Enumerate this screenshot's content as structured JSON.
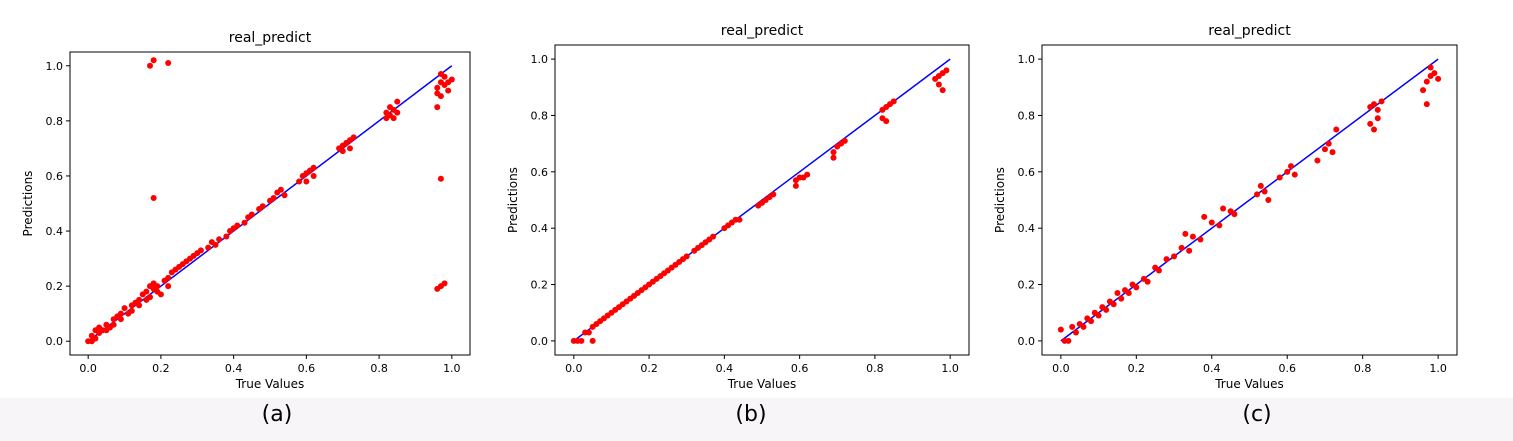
{
  "figure": {
    "background": "#ffffff",
    "caption_strip_color": "#f7f5f7",
    "point_color": "#ff0000",
    "line_color": "#0000ff"
  },
  "chart_data": [
    {
      "type": "scatter",
      "caption": "(a)",
      "title": "real_predict",
      "xlabel": "True Values",
      "ylabel": "Predictions",
      "xlim": [
        -0.05,
        1.05
      ],
      "ylim": [
        -0.05,
        1.05
      ],
      "xticks": [
        0.0,
        0.2,
        0.4,
        0.6,
        0.8,
        1.0
      ],
      "yticks": [
        0.0,
        0.2,
        0.4,
        0.6,
        0.8,
        1.0
      ],
      "xtick_labels": [
        "0.0",
        "0.2",
        "0.4",
        "0.6",
        "0.8",
        "1.0"
      ],
      "ytick_labels": [
        "0.0",
        "0.2",
        "0.4",
        "0.6",
        "0.8",
        "1.0"
      ],
      "reference_line": {
        "x": [
          0.0,
          1.0
        ],
        "y": [
          0.0,
          1.0
        ]
      },
      "points": [
        [
          0.0,
          0.0
        ],
        [
          0.01,
          0.02
        ],
        [
          0.01,
          0.0
        ],
        [
          0.02,
          0.04
        ],
        [
          0.02,
          0.01
        ],
        [
          0.03,
          0.03
        ],
        [
          0.03,
          0.05
        ],
        [
          0.04,
          0.04
        ],
        [
          0.05,
          0.06
        ],
        [
          0.05,
          0.04
        ],
        [
          0.06,
          0.05
        ],
        [
          0.07,
          0.08
        ],
        [
          0.07,
          0.06
        ],
        [
          0.08,
          0.09
        ],
        [
          0.09,
          0.1
        ],
        [
          0.09,
          0.08
        ],
        [
          0.1,
          0.12
        ],
        [
          0.11,
          0.1
        ],
        [
          0.12,
          0.13
        ],
        [
          0.12,
          0.11
        ],
        [
          0.13,
          0.14
        ],
        [
          0.14,
          0.13
        ],
        [
          0.14,
          0.15
        ],
        [
          0.15,
          0.17
        ],
        [
          0.16,
          0.15
        ],
        [
          0.16,
          0.18
        ],
        [
          0.17,
          0.2
        ],
        [
          0.17,
          0.16
        ],
        [
          0.18,
          0.21
        ],
        [
          0.18,
          0.19
        ],
        [
          0.19,
          0.2
        ],
        [
          0.19,
          0.18
        ],
        [
          0.2,
          0.17
        ],
        [
          0.21,
          0.22
        ],
        [
          0.22,
          0.23
        ],
        [
          0.22,
          0.2
        ],
        [
          0.23,
          0.25
        ],
        [
          0.24,
          0.26
        ],
        [
          0.25,
          0.27
        ],
        [
          0.26,
          0.28
        ],
        [
          0.27,
          0.29
        ],
        [
          0.28,
          0.3
        ],
        [
          0.29,
          0.31
        ],
        [
          0.3,
          0.32
        ],
        [
          0.31,
          0.33
        ],
        [
          0.33,
          0.34
        ],
        [
          0.34,
          0.36
        ],
        [
          0.35,
          0.35
        ],
        [
          0.36,
          0.37
        ],
        [
          0.38,
          0.38
        ],
        [
          0.39,
          0.4
        ],
        [
          0.4,
          0.41
        ],
        [
          0.41,
          0.42
        ],
        [
          0.43,
          0.43
        ],
        [
          0.44,
          0.45
        ],
        [
          0.45,
          0.46
        ],
        [
          0.47,
          0.48
        ],
        [
          0.48,
          0.49
        ],
        [
          0.5,
          0.51
        ],
        [
          0.51,
          0.52
        ],
        [
          0.52,
          0.54
        ],
        [
          0.53,
          0.55
        ],
        [
          0.54,
          0.53
        ],
        [
          0.58,
          0.58
        ],
        [
          0.59,
          0.6
        ],
        [
          0.6,
          0.61
        ],
        [
          0.6,
          0.58
        ],
        [
          0.61,
          0.62
        ],
        [
          0.62,
          0.63
        ],
        [
          0.62,
          0.6
        ],
        [
          0.69,
          0.7
        ],
        [
          0.7,
          0.71
        ],
        [
          0.7,
          0.69
        ],
        [
          0.71,
          0.72
        ],
        [
          0.72,
          0.73
        ],
        [
          0.72,
          0.7
        ],
        [
          0.73,
          0.74
        ],
        [
          0.82,
          0.83
        ],
        [
          0.82,
          0.81
        ],
        [
          0.83,
          0.85
        ],
        [
          0.83,
          0.82
        ],
        [
          0.84,
          0.84
        ],
        [
          0.84,
          0.81
        ],
        [
          0.85,
          0.87
        ],
        [
          0.85,
          0.83
        ],
        [
          0.96,
          0.92
        ],
        [
          0.96,
          0.9
        ],
        [
          0.97,
          0.94
        ],
        [
          0.97,
          0.89
        ],
        [
          0.98,
          0.93
        ],
        [
          0.98,
          0.96
        ],
        [
          0.99,
          0.91
        ],
        [
          0.99,
          0.94
        ],
        [
          1.0,
          0.95
        ],
        [
          0.96,
          0.85
        ],
        [
          0.97,
          0.97
        ],
        [
          0.17,
          1.0
        ],
        [
          0.18,
          1.02
        ],
        [
          0.22,
          1.01
        ],
        [
          0.18,
          0.52
        ],
        [
          0.97,
          0.59
        ],
        [
          0.97,
          0.2
        ],
        [
          0.98,
          0.21
        ],
        [
          0.96,
          0.19
        ]
      ]
    },
    {
      "type": "scatter",
      "caption": "(b)",
      "title": "real_predict",
      "xlabel": "True Values",
      "ylabel": "Predictions",
      "xlim": [
        -0.05,
        1.05
      ],
      "ylim": [
        -0.05,
        1.05
      ],
      "xticks": [
        0.0,
        0.2,
        0.4,
        0.6,
        0.8,
        1.0
      ],
      "yticks": [
        0.0,
        0.2,
        0.4,
        0.6,
        0.8,
        1.0
      ],
      "xtick_labels": [
        "0.0",
        "0.2",
        "0.4",
        "0.6",
        "0.8",
        "1.0"
      ],
      "ytick_labels": [
        "0.0",
        "0.2",
        "0.4",
        "0.6",
        "0.8",
        "1.0"
      ],
      "reference_line": {
        "x": [
          0.0,
          1.0
        ],
        "y": [
          0.0,
          1.0
        ]
      },
      "points": [
        [
          0.0,
          0.0
        ],
        [
          0.01,
          0.0
        ],
        [
          0.02,
          0.0
        ],
        [
          0.03,
          0.03
        ],
        [
          0.04,
          0.03
        ],
        [
          0.05,
          0.05
        ],
        [
          0.05,
          0.0
        ],
        [
          0.06,
          0.06
        ],
        [
          0.07,
          0.07
        ],
        [
          0.08,
          0.08
        ],
        [
          0.09,
          0.09
        ],
        [
          0.1,
          0.1
        ],
        [
          0.11,
          0.11
        ],
        [
          0.12,
          0.12
        ],
        [
          0.13,
          0.13
        ],
        [
          0.14,
          0.14
        ],
        [
          0.15,
          0.15
        ],
        [
          0.16,
          0.16
        ],
        [
          0.17,
          0.17
        ],
        [
          0.18,
          0.18
        ],
        [
          0.19,
          0.19
        ],
        [
          0.2,
          0.2
        ],
        [
          0.21,
          0.21
        ],
        [
          0.22,
          0.22
        ],
        [
          0.23,
          0.23
        ],
        [
          0.24,
          0.24
        ],
        [
          0.25,
          0.25
        ],
        [
          0.26,
          0.26
        ],
        [
          0.27,
          0.27
        ],
        [
          0.28,
          0.28
        ],
        [
          0.29,
          0.29
        ],
        [
          0.3,
          0.3
        ],
        [
          0.32,
          0.32
        ],
        [
          0.33,
          0.33
        ],
        [
          0.34,
          0.34
        ],
        [
          0.35,
          0.35
        ],
        [
          0.36,
          0.36
        ],
        [
          0.37,
          0.37
        ],
        [
          0.4,
          0.4
        ],
        [
          0.41,
          0.41
        ],
        [
          0.42,
          0.42
        ],
        [
          0.43,
          0.43
        ],
        [
          0.44,
          0.43
        ],
        [
          0.49,
          0.48
        ],
        [
          0.5,
          0.49
        ],
        [
          0.51,
          0.5
        ],
        [
          0.52,
          0.51
        ],
        [
          0.53,
          0.52
        ],
        [
          0.59,
          0.57
        ],
        [
          0.6,
          0.58
        ],
        [
          0.61,
          0.58
        ],
        [
          0.62,
          0.59
        ],
        [
          0.59,
          0.55
        ],
        [
          0.69,
          0.67
        ],
        [
          0.7,
          0.69
        ],
        [
          0.71,
          0.7
        ],
        [
          0.72,
          0.71
        ],
        [
          0.69,
          0.65
        ],
        [
          0.82,
          0.82
        ],
        [
          0.83,
          0.83
        ],
        [
          0.84,
          0.84
        ],
        [
          0.85,
          0.85
        ],
        [
          0.82,
          0.79
        ],
        [
          0.83,
          0.78
        ],
        [
          0.96,
          0.93
        ],
        [
          0.97,
          0.94
        ],
        [
          0.98,
          0.95
        ],
        [
          0.99,
          0.96
        ],
        [
          0.97,
          0.91
        ],
        [
          0.98,
          0.89
        ]
      ]
    },
    {
      "type": "scatter",
      "caption": "(c)",
      "title": "real_predict",
      "xlabel": "True Values",
      "ylabel": "Predictions",
      "xlim": [
        -0.05,
        1.05
      ],
      "ylim": [
        -0.05,
        1.05
      ],
      "xticks": [
        0.0,
        0.2,
        0.4,
        0.6,
        0.8,
        1.0
      ],
      "yticks": [
        0.0,
        0.2,
        0.4,
        0.6,
        0.8,
        1.0
      ],
      "xtick_labels": [
        "0.0",
        "0.2",
        "0.4",
        "0.6",
        "0.8",
        "1.0"
      ],
      "ytick_labels": [
        "0.0",
        "0.2",
        "0.4",
        "0.6",
        "0.8",
        "1.0"
      ],
      "reference_line": {
        "x": [
          0.0,
          1.0
        ],
        "y": [
          0.0,
          1.0
        ]
      },
      "points": [
        [
          0.0,
          0.04
        ],
        [
          0.01,
          0.0
        ],
        [
          0.02,
          0.0
        ],
        [
          0.03,
          0.05
        ],
        [
          0.04,
          0.03
        ],
        [
          0.05,
          0.06
        ],
        [
          0.06,
          0.05
        ],
        [
          0.07,
          0.08
        ],
        [
          0.08,
          0.07
        ],
        [
          0.09,
          0.1
        ],
        [
          0.1,
          0.09
        ],
        [
          0.11,
          0.12
        ],
        [
          0.12,
          0.11
        ],
        [
          0.13,
          0.14
        ],
        [
          0.14,
          0.13
        ],
        [
          0.15,
          0.17
        ],
        [
          0.16,
          0.15
        ],
        [
          0.17,
          0.18
        ],
        [
          0.18,
          0.17
        ],
        [
          0.19,
          0.2
        ],
        [
          0.2,
          0.19
        ],
        [
          0.22,
          0.22
        ],
        [
          0.23,
          0.21
        ],
        [
          0.25,
          0.26
        ],
        [
          0.26,
          0.25
        ],
        [
          0.28,
          0.29
        ],
        [
          0.3,
          0.3
        ],
        [
          0.32,
          0.33
        ],
        [
          0.33,
          0.38
        ],
        [
          0.34,
          0.32
        ],
        [
          0.35,
          0.37
        ],
        [
          0.37,
          0.36
        ],
        [
          0.38,
          0.44
        ],
        [
          0.4,
          0.42
        ],
        [
          0.42,
          0.41
        ],
        [
          0.43,
          0.47
        ],
        [
          0.45,
          0.46
        ],
        [
          0.46,
          0.45
        ],
        [
          0.52,
          0.52
        ],
        [
          0.53,
          0.55
        ],
        [
          0.54,
          0.53
        ],
        [
          0.55,
          0.5
        ],
        [
          0.58,
          0.58
        ],
        [
          0.6,
          0.6
        ],
        [
          0.61,
          0.62
        ],
        [
          0.62,
          0.59
        ],
        [
          0.7,
          0.68
        ],
        [
          0.71,
          0.7
        ],
        [
          0.72,
          0.67
        ],
        [
          0.73,
          0.75
        ],
        [
          0.68,
          0.64
        ],
        [
          0.82,
          0.83
        ],
        [
          0.83,
          0.84
        ],
        [
          0.84,
          0.82
        ],
        [
          0.85,
          0.85
        ],
        [
          0.82,
          0.77
        ],
        [
          0.83,
          0.75
        ],
        [
          0.84,
          0.79
        ],
        [
          0.97,
          0.92
        ],
        [
          0.98,
          0.94
        ],
        [
          0.99,
          0.95
        ],
        [
          1.0,
          0.93
        ],
        [
          0.96,
          0.89
        ],
        [
          0.97,
          0.84
        ],
        [
          0.98,
          0.97
        ]
      ]
    }
  ]
}
